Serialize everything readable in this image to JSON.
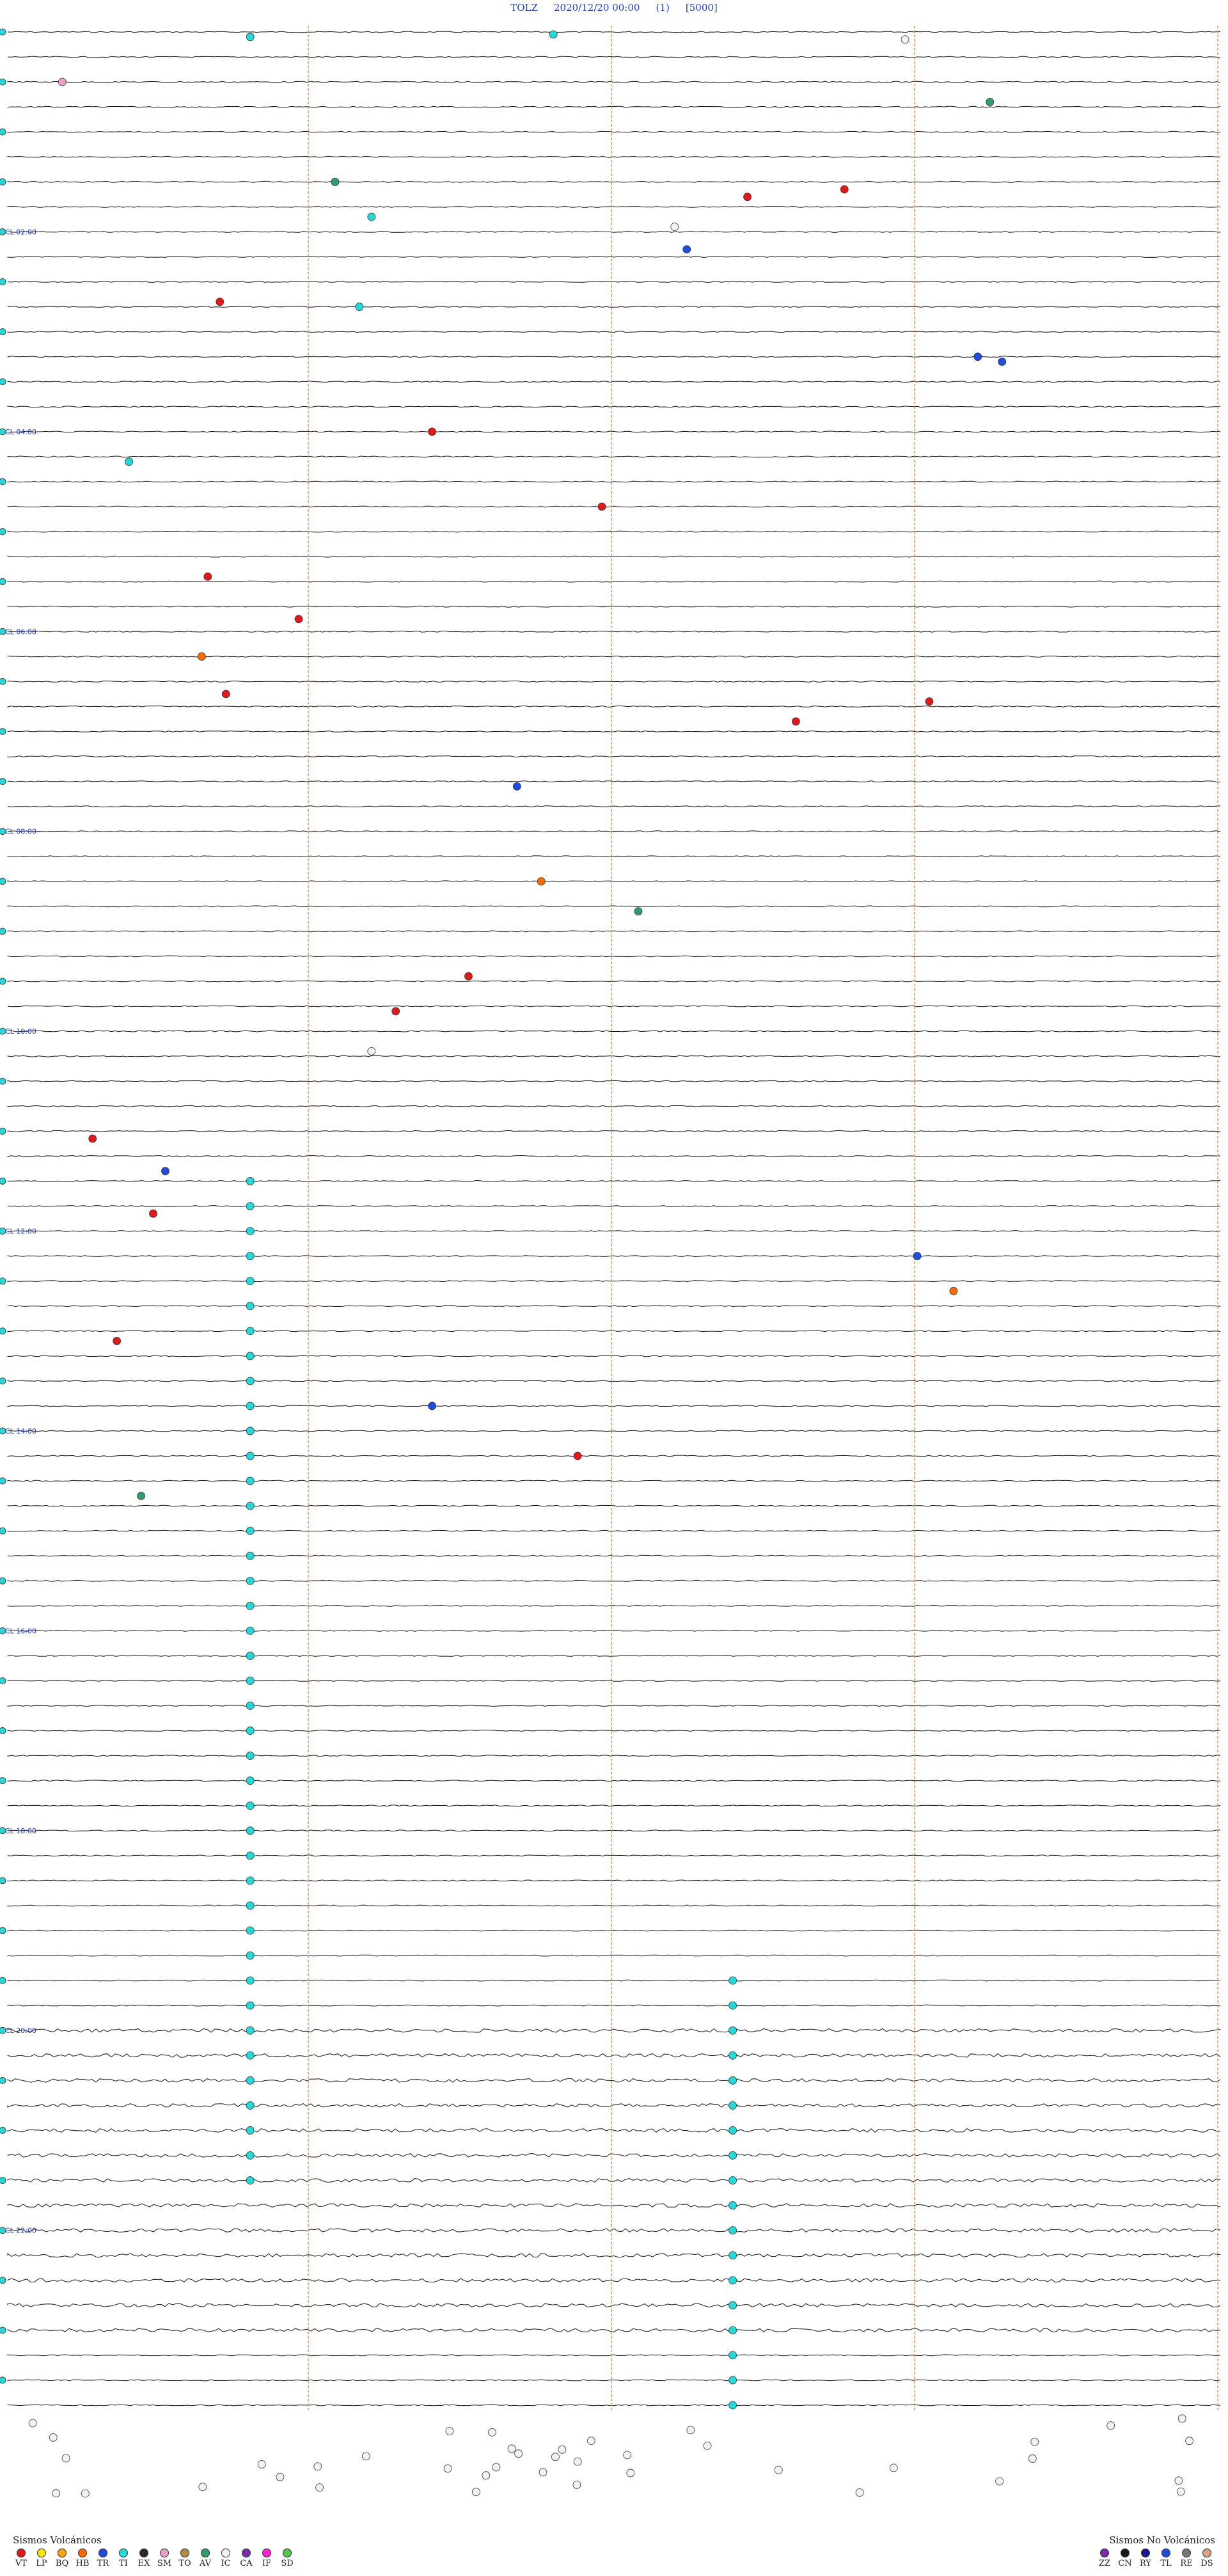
{
  "header": {
    "station": "TOLZ",
    "datetime": "2020/12/20 00:00",
    "channel": "(1)",
    "scale": "[5000]"
  },
  "chart_data": {
    "type": "helicorder",
    "time_labels": [
      "02:00",
      "04:00",
      "06:00",
      "08:00",
      "10:00",
      "12:00",
      "14:00",
      "16:00",
      "18:00",
      "20:00",
      "22:00"
    ],
    "n_traces": 96,
    "minute_lines": [
      15,
      30,
      45,
      60
    ],
    "events": [
      {
        "t": 0.2,
        "x": 0.2,
        "type": "TI"
      },
      {
        "t": 0.1,
        "x": 0.45,
        "type": "TI"
      },
      {
        "t": 0.3,
        "x": 0.74,
        "type": "IC"
      },
      {
        "t": 2.8,
        "x": 0.81,
        "type": "AV"
      },
      {
        "t": 2.0,
        "x": 0.045,
        "type": "SM"
      },
      {
        "t": 6.0,
        "x": 0.27,
        "type": "AV"
      },
      {
        "t": 6.3,
        "x": 0.69,
        "type": "VT"
      },
      {
        "t": 6.6,
        "x": 0.61,
        "type": "VT"
      },
      {
        "t": 7.4,
        "x": 0.3,
        "type": "TI"
      },
      {
        "t": 7.8,
        "x": 0.55,
        "type": "IC"
      },
      {
        "t": 8.7,
        "x": 0.56,
        "type": "TR"
      },
      {
        "t": 10.8,
        "x": 0.175,
        "type": "VT"
      },
      {
        "t": 11.0,
        "x": 0.29,
        "type": "TI"
      },
      {
        "t": 13.0,
        "x": 0.8,
        "type": "TR"
      },
      {
        "t": 13.2,
        "x": 0.82,
        "type": "TR"
      },
      {
        "t": 16.0,
        "x": 0.35,
        "type": "VT"
      },
      {
        "t": 17.2,
        "x": 0.1,
        "type": "TI"
      },
      {
        "t": 19.0,
        "x": 0.49,
        "type": "VT"
      },
      {
        "t": 21.8,
        "x": 0.165,
        "type": "VT"
      },
      {
        "t": 23.5,
        "x": 0.24,
        "type": "VT"
      },
      {
        "t": 25.0,
        "x": 0.16,
        "type": "HB"
      },
      {
        "t": 26.5,
        "x": 0.18,
        "type": "VT"
      },
      {
        "t": 26.8,
        "x": 0.76,
        "type": "VT"
      },
      {
        "t": 27.6,
        "x": 0.65,
        "type": "VT"
      },
      {
        "t": 30.2,
        "x": 0.42,
        "type": "TR"
      },
      {
        "t": 34.0,
        "x": 0.44,
        "type": "HB"
      },
      {
        "t": 35.2,
        "x": 0.52,
        "type": "AV"
      },
      {
        "t": 37.8,
        "x": 0.38,
        "type": "VT"
      },
      {
        "t": 39.2,
        "x": 0.32,
        "type": "VT"
      },
      {
        "t": 40.8,
        "x": 0.3,
        "type": "IC"
      },
      {
        "t": 44.3,
        "x": 0.07,
        "type": "VT"
      },
      {
        "t": 45.6,
        "x": 0.13,
        "type": "TR"
      },
      {
        "t": 47.3,
        "x": 0.12,
        "type": "VT"
      },
      {
        "t": 49.0,
        "x": 0.75,
        "type": "TR"
      },
      {
        "t": 50.4,
        "x": 0.78,
        "type": "HB"
      },
      {
        "t": 52.4,
        "x": 0.09,
        "type": "VT"
      },
      {
        "t": 55.0,
        "x": 0.35,
        "type": "TR"
      },
      {
        "t": 57.0,
        "x": 0.47,
        "type": "VT"
      },
      {
        "t": 58.6,
        "x": 0.11,
        "type": "AV"
      }
    ],
    "ti_column_x": 0.2,
    "legend_volcanic": [
      "VT",
      "LP",
      "BQ",
      "HB",
      "TR",
      "TI",
      "EX",
      "SM",
      "TO",
      "AV",
      "IC",
      "CA",
      "IF",
      "SD"
    ],
    "legend_nonvolcanic": [
      "ZZ",
      "CN",
      "RY",
      "TL",
      "RE",
      "DS"
    ]
  },
  "legend": {
    "volcanic_title": "Sismos Volcánicos",
    "nonvolcanic_title": "Sismos No Volcánicos",
    "colors": {
      "VT": "#e01a1a",
      "LP": "#ffe600",
      "BQ": "#ffa500",
      "HB": "#ff6a00",
      "TR": "#1f4ddc",
      "TI": "#27d8d8",
      "EX": "#2b2b2b",
      "SM": "#e8a0c8",
      "TO": "#b58a45",
      "AV": "#2e9e6a",
      "IC": "#f2f2f2",
      "CA": "#7a2da8",
      "IF": "#ff22cc",
      "SD": "#4fc44f",
      "ZZ": "#7a2da8",
      "CN": "#1a1a1a",
      "RY": "#1a1a8c",
      "TL": "#1f4ddc",
      "RE": "#777777",
      "DS": "#d8a58a"
    }
  }
}
